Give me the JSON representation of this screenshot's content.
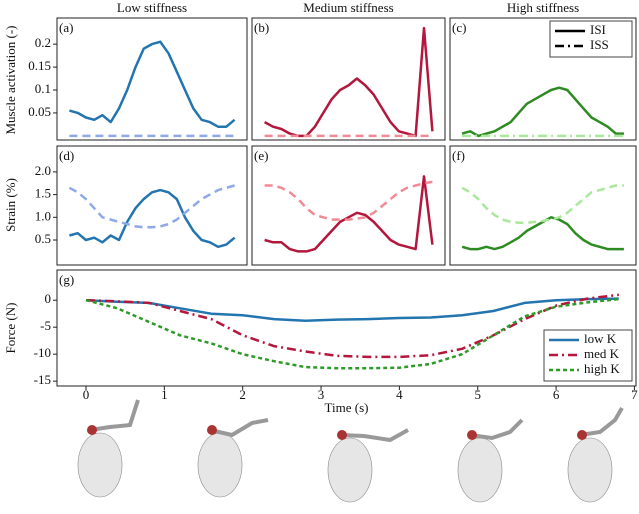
{
  "chart_data": [
    {
      "type": "line",
      "title": "Low stiffness",
      "annotation": "(a)",
      "ylabel": "Muscle activation (-)",
      "xlim": [
        -0.15,
        2.15
      ],
      "ylim": [
        -0.009,
        0.257
      ],
      "yticks": [
        0.05,
        0.1,
        0.15,
        0.2
      ],
      "x": [
        0,
        0.1,
        0.2,
        0.3,
        0.4,
        0.5,
        0.6,
        0.7,
        0.8,
        0.9,
        1,
        1.1,
        1.2,
        1.3,
        1.4,
        1.5,
        1.6,
        1.7,
        1.8,
        1.9,
        2
      ],
      "series": [
        {
          "color": "#2375b0",
          "dash": "solid",
          "values": [
            0.055,
            0.05,
            0.04,
            0.035,
            0.045,
            0.03,
            0.06,
            0.1,
            0.15,
            0.19,
            0.2,
            0.205,
            0.18,
            0.14,
            0.1,
            0.06,
            0.035,
            0.03,
            0.02,
            0.02,
            0.035
          ]
        },
        {
          "color": "#8fa8e8",
          "dash": "dashed",
          "values": [
            0,
            0,
            0,
            0,
            0,
            0,
            0,
            0,
            0,
            0,
            0,
            0,
            0,
            0,
            0,
            0,
            0,
            0,
            0,
            0,
            0
          ]
        }
      ]
    },
    {
      "type": "line",
      "title": "Medium stiffness",
      "annotation": "(b)",
      "xlim": [
        -0.15,
        2.15
      ],
      "ylim": [
        -0.009,
        0.257
      ],
      "x": [
        0,
        0.1,
        0.2,
        0.3,
        0.4,
        0.5,
        0.6,
        0.7,
        0.8,
        0.9,
        1,
        1.1,
        1.2,
        1.3,
        1.4,
        1.5,
        1.6,
        1.7,
        1.8,
        1.9,
        2
      ],
      "series": [
        {
          "color": "#b3173c",
          "dash": "solid",
          "values": [
            0.03,
            0.02,
            0.015,
            0.005,
            0,
            0,
            0.02,
            0.05,
            0.08,
            0.1,
            0.11,
            0.125,
            0.11,
            0.09,
            0.06,
            0.03,
            0.01,
            0.005,
            0,
            0.235,
            0.01
          ]
        },
        {
          "color": "#f08a94",
          "dash": "dashed",
          "values": [
            0,
            0,
            0,
            0,
            0,
            0,
            0,
            0,
            0,
            0,
            0,
            0,
            0,
            0,
            0,
            0,
            0,
            0,
            0,
            0,
            0
          ]
        }
      ]
    },
    {
      "type": "line",
      "title": "High stiffness",
      "annotation": "(c)",
      "xlim": [
        -0.15,
        2.15
      ],
      "ylim": [
        -0.009,
        0.257
      ],
      "legend": "upper right",
      "x": [
        0,
        0.1,
        0.2,
        0.3,
        0.4,
        0.5,
        0.6,
        0.7,
        0.8,
        0.9,
        1,
        1.1,
        1.2,
        1.3,
        1.4,
        1.5,
        1.6,
        1.7,
        1.8,
        1.9,
        2
      ],
      "series": [
        {
          "name": "ISI",
          "color": "#2e8b22",
          "dash": "solid",
          "values": [
            0.005,
            0.01,
            0,
            0.005,
            0.01,
            0.02,
            0.03,
            0.05,
            0.07,
            0.08,
            0.09,
            0.1,
            0.105,
            0.1,
            0.08,
            0.06,
            0.04,
            0.03,
            0.02,
            0.005,
            0.005
          ]
        },
        {
          "name": "ISS",
          "color": "#a8e89a",
          "dash": "dashdot",
          "values": [
            0,
            0,
            0,
            0,
            0,
            0,
            0,
            0,
            0,
            0,
            0,
            0,
            0,
            0,
            0,
            0,
            0,
            0,
            0,
            0,
            0
          ]
        }
      ]
    },
    {
      "type": "line",
      "annotation": "(d)",
      "ylabel": "Strain (%)",
      "xlim": [
        -0.15,
        2.15
      ],
      "ylim": [
        -0.05,
        2.57
      ],
      "yticks": [
        {
          "value": 0.5,
          "label": "0.5"
        },
        {
          "value": 1,
          "label": "1.0"
        },
        {
          "value": 1.5,
          "label": "1.5"
        },
        {
          "value": 2,
          "label": "2.0"
        }
      ],
      "x": [
        0,
        0.1,
        0.2,
        0.3,
        0.4,
        0.5,
        0.6,
        0.7,
        0.8,
        0.9,
        1,
        1.1,
        1.2,
        1.3,
        1.4,
        1.5,
        1.6,
        1.7,
        1.8,
        1.9,
        2
      ],
      "series": [
        {
          "color": "#2375b0",
          "dash": "solid",
          "values": [
            0.6,
            0.65,
            0.5,
            0.55,
            0.45,
            0.6,
            0.5,
            0.9,
            1.2,
            1.4,
            1.55,
            1.6,
            1.55,
            1.4,
            1,
            0.7,
            0.5,
            0.45,
            0.35,
            0.4,
            0.55
          ]
        },
        {
          "color": "#8fa8e8",
          "dash": "dashed",
          "values": [
            1.65,
            1.55,
            1.4,
            1.2,
            1,
            0.95,
            0.9,
            0.85,
            0.8,
            0.78,
            0.78,
            0.8,
            0.85,
            0.95,
            1.1,
            1.25,
            1.4,
            1.5,
            1.6,
            1.65,
            1.7
          ]
        }
      ]
    },
    {
      "type": "line",
      "annotation": "(e)",
      "xlim": [
        -0.15,
        2.15
      ],
      "ylim": [
        -0.05,
        2.57
      ],
      "x": [
        0,
        0.1,
        0.2,
        0.3,
        0.4,
        0.5,
        0.6,
        0.7,
        0.8,
        0.9,
        1,
        1.1,
        1.2,
        1.3,
        1.4,
        1.5,
        1.6,
        1.7,
        1.8,
        1.9,
        2
      ],
      "series": [
        {
          "color": "#b3173c",
          "dash": "solid",
          "values": [
            0.5,
            0.45,
            0.45,
            0.3,
            0.25,
            0.25,
            0.3,
            0.5,
            0.7,
            0.9,
            1,
            1.1,
            1.05,
            0.9,
            0.7,
            0.5,
            0.4,
            0.35,
            0.3,
            1.9,
            0.4
          ]
        },
        {
          "color": "#f08a94",
          "dash": "dashed",
          "values": [
            1.7,
            1.7,
            1.65,
            1.55,
            1.4,
            1.2,
            1.05,
            1,
            0.95,
            0.95,
            0.95,
            0.97,
            1,
            1.1,
            1.25,
            1.4,
            1.55,
            1.65,
            1.7,
            1.75,
            1.78
          ]
        }
      ]
    },
    {
      "type": "line",
      "annotation": "(f)",
      "xlim": [
        -0.15,
        2.15
      ],
      "ylim": [
        -0.05,
        2.57
      ],
      "x": [
        0,
        0.1,
        0.2,
        0.3,
        0.4,
        0.5,
        0.6,
        0.7,
        0.8,
        0.9,
        1,
        1.1,
        1.2,
        1.3,
        1.4,
        1.5,
        1.6,
        1.7,
        1.8,
        1.9,
        2
      ],
      "series": [
        {
          "color": "#2e8b22",
          "dash": "solid",
          "values": [
            0.35,
            0.3,
            0.3,
            0.35,
            0.3,
            0.35,
            0.45,
            0.55,
            0.7,
            0.8,
            0.9,
            1,
            0.95,
            0.85,
            0.65,
            0.5,
            0.4,
            0.35,
            0.3,
            0.3,
            0.3
          ]
        },
        {
          "color": "#a8e89a",
          "dash": "dashed",
          "values": [
            1.65,
            1.55,
            1.4,
            1.2,
            1.05,
            0.95,
            0.9,
            0.88,
            0.88,
            0.9,
            0.92,
            0.95,
            1,
            1.1,
            1.25,
            1.4,
            1.55,
            1.6,
            1.65,
            1.7,
            1.7
          ]
        }
      ]
    },
    {
      "type": "line",
      "annotation": "(g)",
      "ylabel": "Force (N)",
      "xlabel": "Time (s)",
      "xlim": [
        -0.37,
        7.02
      ],
      "ylim": [
        -15.9,
        5.6
      ],
      "xticks": [
        0,
        1,
        2,
        3,
        4,
        5,
        6,
        7
      ],
      "yticks": [
        0,
        -5,
        -10,
        -15
      ],
      "legend": "lower right",
      "x": [
        0,
        0.4,
        0.8,
        1.2,
        1.6,
        2,
        2.4,
        2.8,
        3.2,
        3.6,
        4,
        4.4,
        4.8,
        5.2,
        5.6,
        6,
        6.4,
        6.8
      ],
      "series": [
        {
          "name": "low K",
          "color": "#2375b0",
          "dash": "solid",
          "values": [
            0,
            -0.3,
            -0.5,
            -1.5,
            -2.5,
            -2.8,
            -3.5,
            -3.8,
            -3.6,
            -3.5,
            -3.3,
            -3.2,
            -2.8,
            -2,
            -0.5,
            0,
            0.2,
            0.3
          ]
        },
        {
          "name": "med K",
          "color": "#b3173c",
          "dash": "dashdot",
          "values": [
            0,
            -0.2,
            -0.5,
            -2,
            -3.5,
            -6.5,
            -8.5,
            -9.5,
            -10.3,
            -10.5,
            -10.5,
            -10.2,
            -9,
            -6.5,
            -3.5,
            -1,
            0.3,
            1
          ]
        },
        {
          "name": "high K",
          "color": "#2e9a28",
          "dash": "dotted",
          "values": [
            0,
            -1.5,
            -4,
            -6.5,
            -8,
            -10,
            -11.3,
            -12.4,
            -12.6,
            -12.6,
            -12.5,
            -11.8,
            -10,
            -6.5,
            -3,
            -1.2,
            -0.4,
            0.2
          ]
        }
      ]
    }
  ]
}
